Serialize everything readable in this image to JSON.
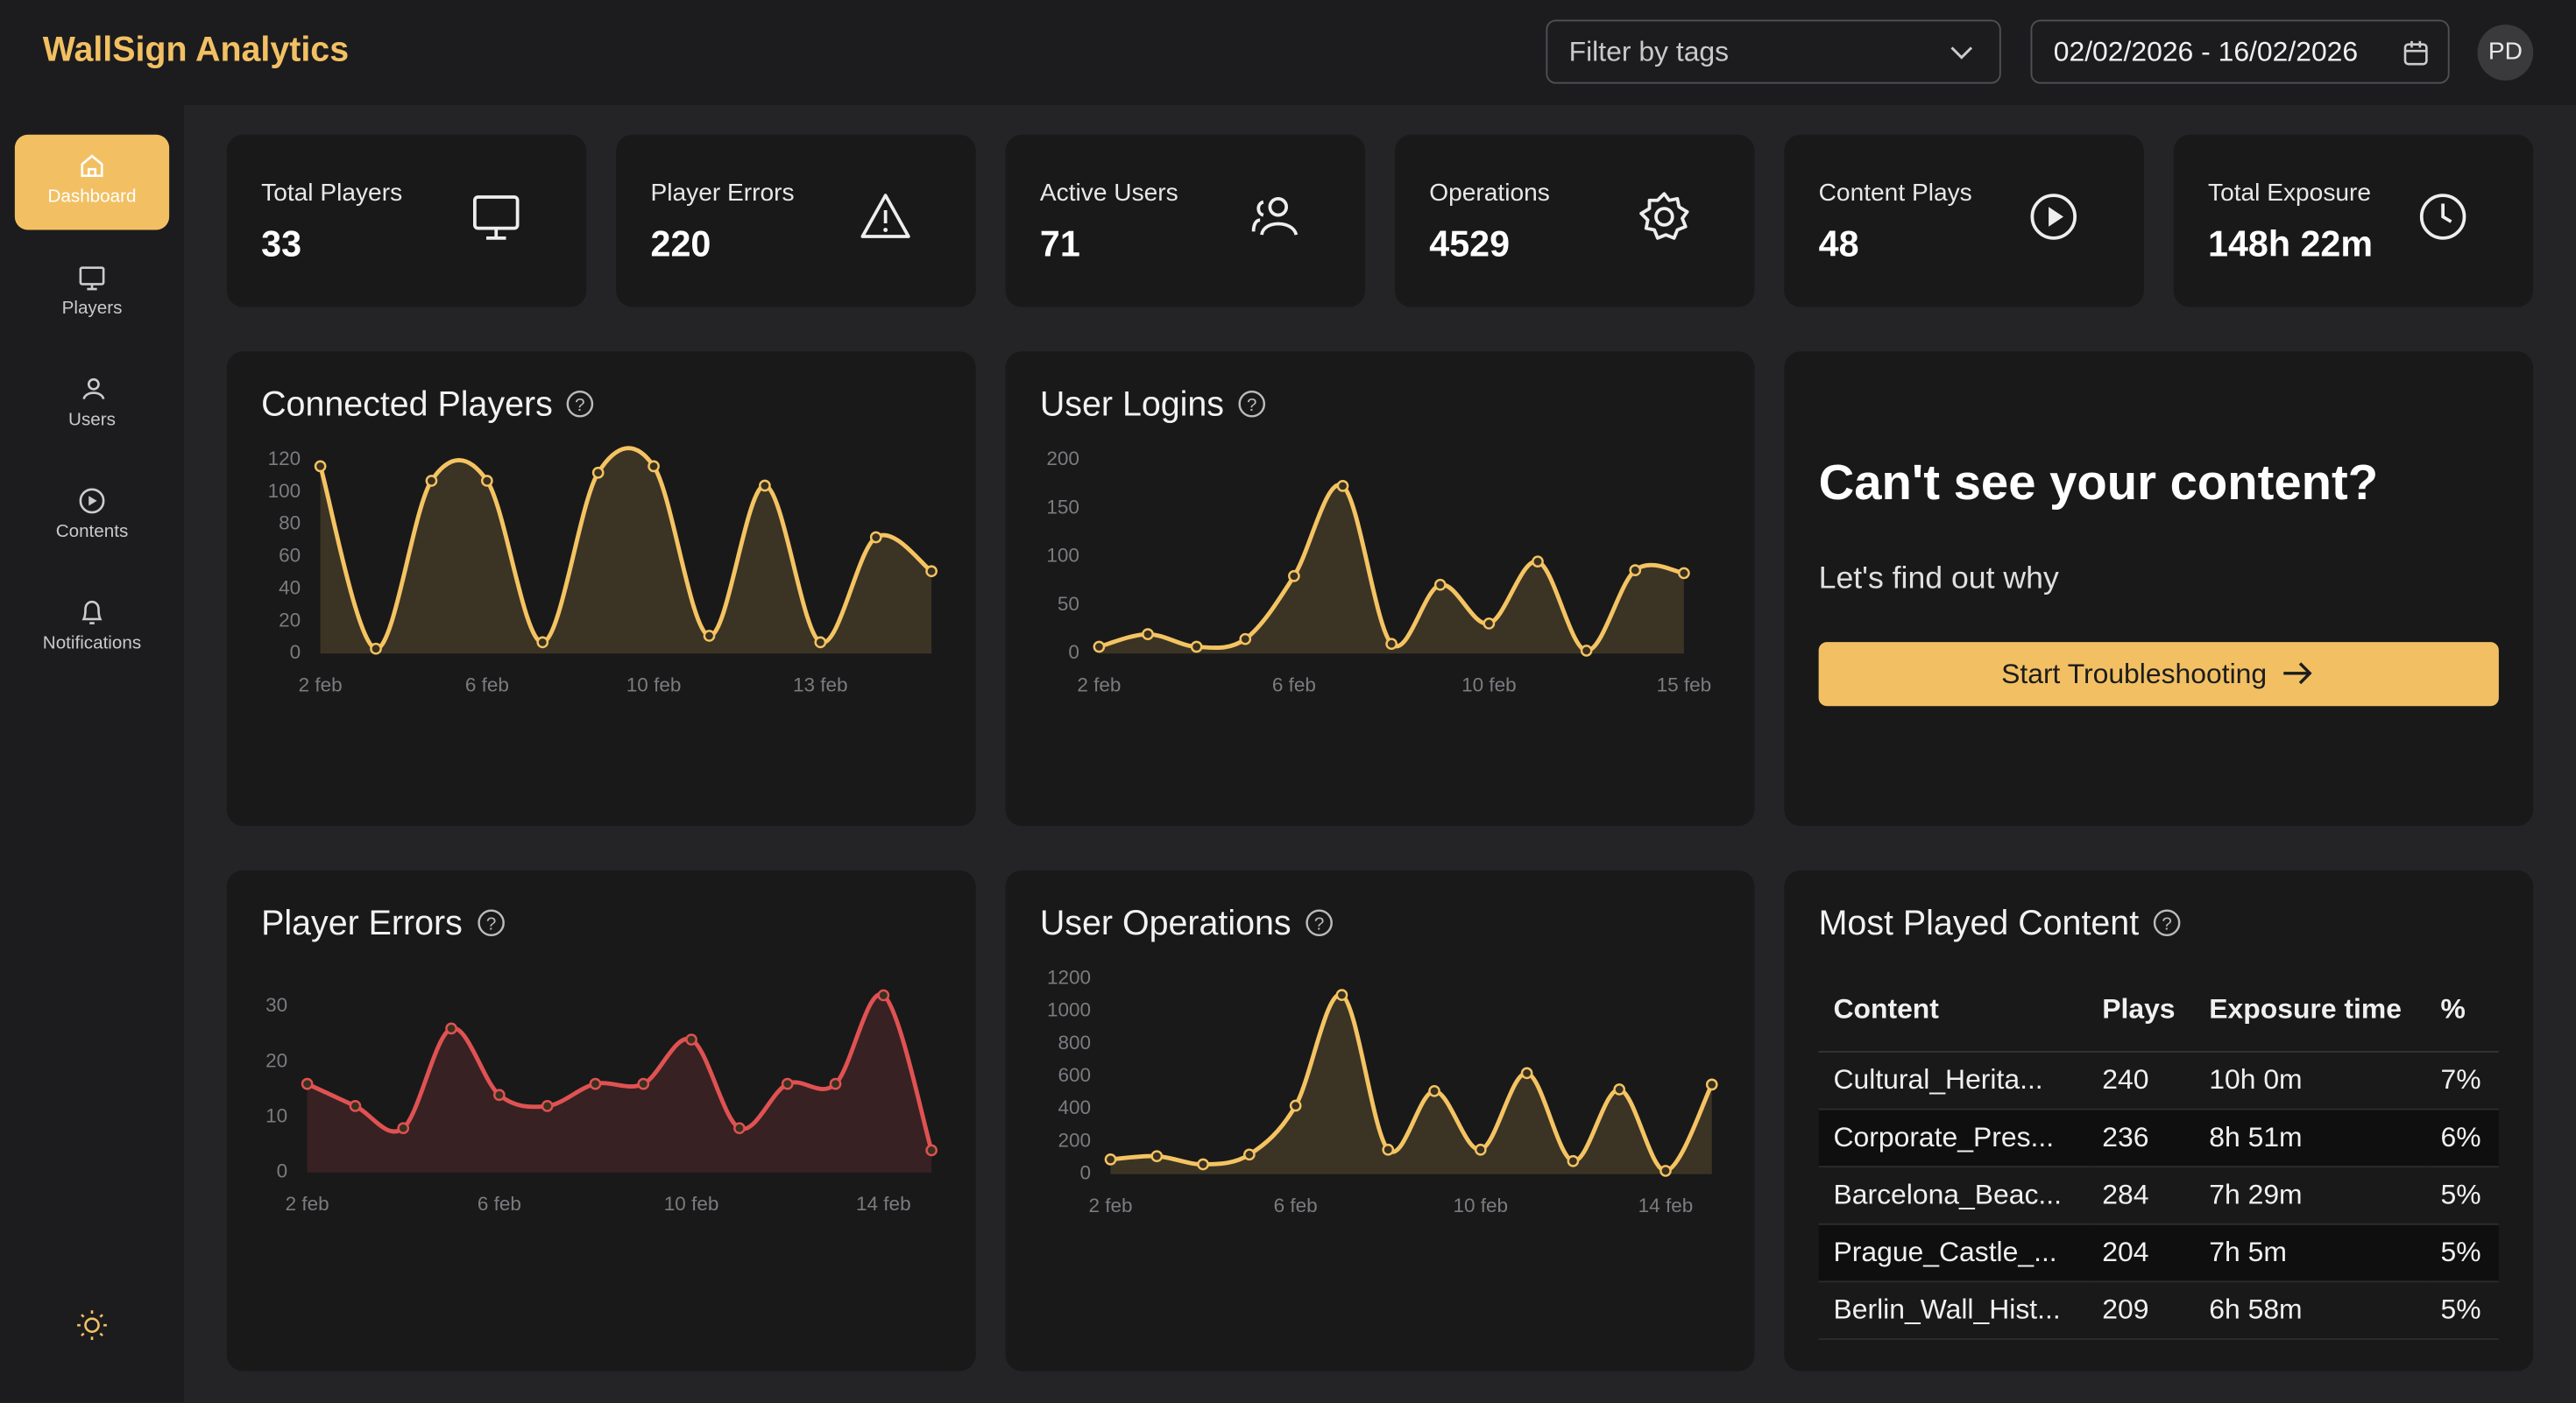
{
  "header": {
    "title": "WallSign Analytics",
    "filter_placeholder": "Filter by tags",
    "date_range": "02/02/2026 - 16/02/2026",
    "avatar": "PD"
  },
  "sidebar": {
    "items": [
      "Dashboard",
      "Players",
      "Users",
      "Contents",
      "Notifications"
    ]
  },
  "kpis": [
    {
      "label": "Total Players",
      "value": "33"
    },
    {
      "label": "Player Errors",
      "value": "220"
    },
    {
      "label": "Active Users",
      "value": "71"
    },
    {
      "label": "Operations",
      "value": "4529"
    },
    {
      "label": "Content Plays",
      "value": "48"
    },
    {
      "label": "Total Exposure",
      "value": "148h 22m"
    }
  ],
  "chart_data": [
    {
      "type": "line",
      "title": "Connected Players",
      "color": "#f5c462",
      "categories": [
        "2 feb",
        null,
        null,
        "6 feb",
        null,
        null,
        "10 feb",
        null,
        null,
        "13 feb",
        null,
        null
      ],
      "values": [
        116,
        3,
        107,
        107,
        7,
        112,
        116,
        11,
        104,
        7,
        72,
        51
      ],
      "ylim": [
        0,
        120
      ],
      "yticks": [
        0,
        20,
        40,
        60,
        80,
        100,
        120
      ]
    },
    {
      "type": "line",
      "title": "User Logins",
      "color": "#f5c462",
      "categories": [
        "2 feb",
        null,
        null,
        null,
        "6 feb",
        null,
        null,
        null,
        "10 feb",
        null,
        null,
        null,
        "15 feb"
      ],
      "values": [
        7,
        20,
        7,
        15,
        80,
        173,
        10,
        71,
        31,
        95,
        3,
        86,
        83
      ],
      "ylim": [
        0,
        200
      ],
      "yticks": [
        0,
        50,
        100,
        150,
        200
      ]
    },
    {
      "type": "line",
      "title": "Player Errors",
      "color": "#e05252",
      "categories": [
        "2 feb",
        null,
        null,
        null,
        "6 feb",
        null,
        null,
        null,
        "10 feb",
        null,
        null,
        null,
        "14 feb",
        null
      ],
      "values": [
        16,
        12,
        8,
        26,
        14,
        12,
        16,
        16,
        24,
        8,
        16,
        16,
        32,
        4
      ],
      "ylim": [
        0,
        35
      ],
      "yticks": [
        0,
        10,
        20,
        30
      ]
    },
    {
      "type": "line",
      "title": "User Operations",
      "color": "#f5c462",
      "categories": [
        "2 feb",
        null,
        null,
        null,
        "6 feb",
        null,
        null,
        null,
        "10 feb",
        null,
        null,
        null,
        "14 feb",
        null
      ],
      "values": [
        90,
        110,
        60,
        120,
        420,
        1100,
        150,
        510,
        150,
        620,
        80,
        520,
        20,
        550
      ],
      "ylim": [
        0,
        1200
      ],
      "yticks": [
        0,
        200,
        400,
        600,
        800,
        1000,
        1200
      ]
    }
  ],
  "promo": {
    "heading": "Can't see your content?",
    "subheading": "Let's find out why",
    "button": "Start Troubleshooting"
  },
  "table": {
    "title": "Most Played Content",
    "columns": [
      "Content",
      "Plays",
      "Exposure time",
      "%"
    ],
    "rows": [
      [
        "Cultural_Herita...",
        "240",
        "10h 0m",
        "7%"
      ],
      [
        "Corporate_Pres...",
        "236",
        "8h 51m",
        "6%"
      ],
      [
        "Barcelona_Beac...",
        "284",
        "7h 29m",
        "5%"
      ],
      [
        "Prague_Castle_...",
        "204",
        "7h 5m",
        "5%"
      ],
      [
        "Berlin_Wall_Hist...",
        "209",
        "6h 58m",
        "5%"
      ]
    ]
  }
}
